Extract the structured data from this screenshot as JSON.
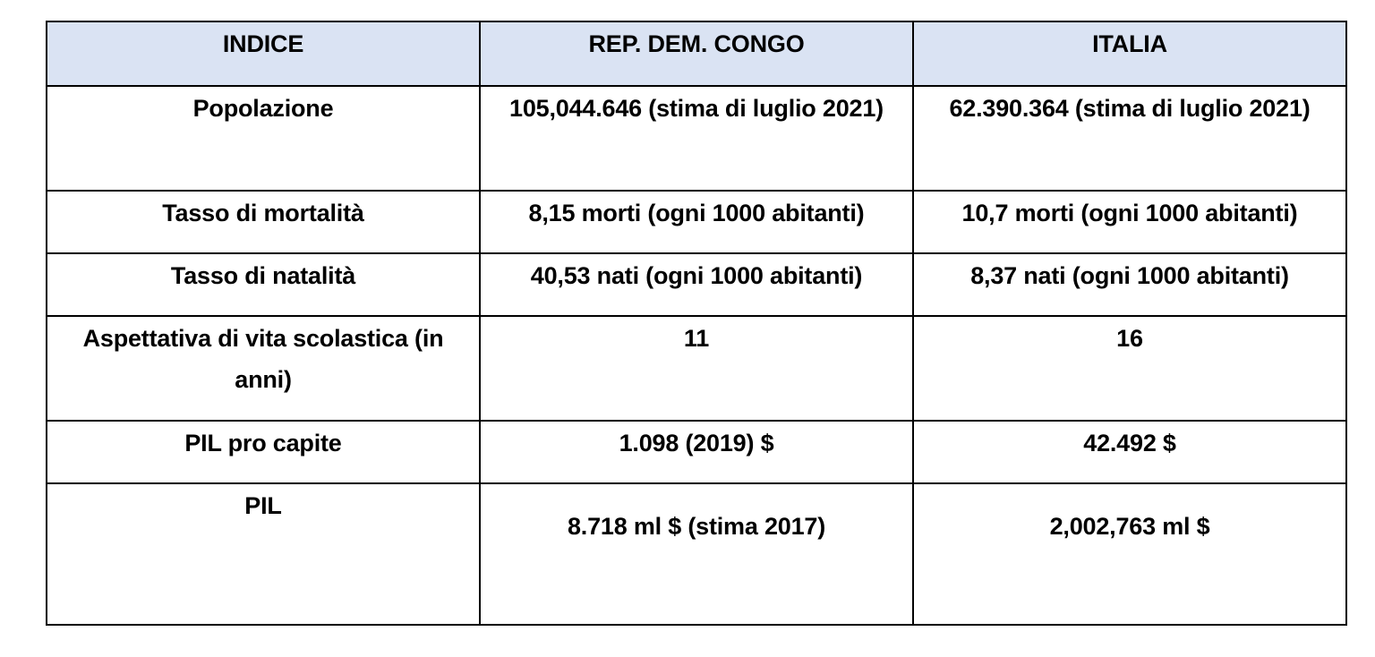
{
  "table": {
    "headers": [
      "INDICE",
      "REP. DEM. CONGO",
      "ITALIA"
    ],
    "rows": [
      {
        "indice": "Popolazione",
        "congo": "105,044.646 (stima di luglio 2021)",
        "italia": "62.390.364 (stima di luglio 2021)"
      },
      {
        "indice": "Tasso di mortalità",
        "congo": "8,15 morti (ogni 1000 abitanti)",
        "italia": "10,7 morti (ogni 1000 abitanti)"
      },
      {
        "indice": "Tasso di natalità",
        "congo": "40,53 nati (ogni 1000 abitanti)",
        "italia": "8,37 nati (ogni 1000 abitanti)"
      },
      {
        "indice": "Aspettativa di vita scolastica (in anni)",
        "congo": "11",
        "italia": "16"
      },
      {
        "indice": "PIL pro capite",
        "congo": "1.098 (2019) $",
        "italia": "42.492 $"
      },
      {
        "indice": "PIL",
        "congo": "8.718 ml $ (stima 2017)",
        "italia": "2,002,763 ml $"
      }
    ]
  },
  "colors": {
    "header_background": "#dae3f3",
    "border": "#000000"
  }
}
